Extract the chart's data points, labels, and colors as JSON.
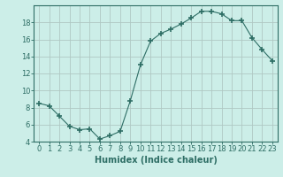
{
  "x": [
    0,
    1,
    2,
    3,
    4,
    5,
    6,
    7,
    8,
    9,
    10,
    11,
    12,
    13,
    14,
    15,
    16,
    17,
    18,
    19,
    20,
    21,
    22,
    23
  ],
  "y": [
    8.5,
    8.2,
    7.0,
    5.8,
    5.4,
    5.5,
    4.3,
    4.7,
    5.2,
    8.8,
    13.0,
    15.8,
    16.7,
    17.2,
    17.8,
    18.5,
    19.3,
    19.3,
    19.0,
    18.2,
    18.2,
    16.2,
    14.8,
    13.5
  ],
  "line_color": "#2e6e65",
  "marker": "+",
  "marker_size": 4,
  "marker_lw": 1.2,
  "bg_color": "#cceee8",
  "grid_color": "#b0c8c4",
  "xlabel": "Humidex (Indice chaleur)",
  "xlabel_fontsize": 7,
  "tick_fontsize": 6,
  "ylim": [
    4,
    20
  ],
  "yticks": [
    4,
    6,
    8,
    10,
    12,
    14,
    16,
    18
  ],
  "xlim": [
    -0.5,
    23.5
  ],
  "xticks": [
    0,
    1,
    2,
    3,
    4,
    5,
    6,
    7,
    8,
    9,
    10,
    11,
    12,
    13,
    14,
    15,
    16,
    17,
    18,
    19,
    20,
    21,
    22,
    23
  ]
}
